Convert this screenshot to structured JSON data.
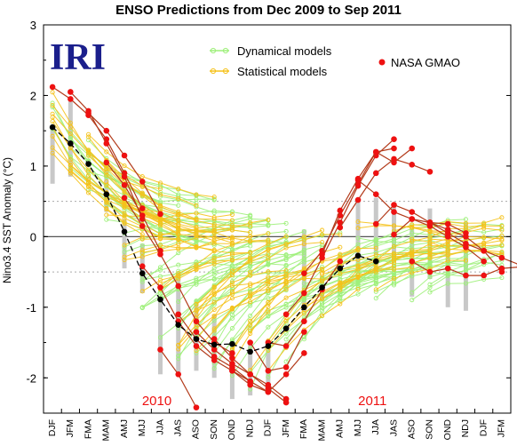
{
  "chart_data": {
    "type": "line",
    "title": "ENSO Predictions from Dec 2009 to Sep 2011",
    "ylabel": "Nino3.4 SST Anomaly (°C)",
    "xlabel": "",
    "ylim": [
      -2.5,
      3
    ],
    "yticks": [
      -2,
      -1,
      0,
      1,
      2,
      3
    ],
    "categories": [
      "DJF",
      "JFM",
      "FMA",
      "MAM",
      "AMJ",
      "MJJ",
      "JJA",
      "JAS",
      "ASO",
      "SON",
      "OND",
      "NDJ",
      "DJF",
      "JFM",
      "FMA",
      "MAM",
      "AMJ",
      "MJJ",
      "JJA",
      "JAS",
      "ASO",
      "SON",
      "OND",
      "NDJ",
      "DJF",
      "JFM"
    ],
    "year_labels": [
      {
        "text": "2010",
        "category_index": 6
      },
      {
        "text": "2011",
        "category_index": 18
      }
    ],
    "logo": "IRI",
    "reference_lines": [
      0.5,
      -0.5
    ],
    "grid": false,
    "legend_items": [
      {
        "label": "Dynamical models",
        "color": "#9ef07a"
      },
      {
        "label": "Statistical models",
        "color": "#f5c21b"
      },
      {
        "label": "NASA GMAO",
        "color": "#ee1111"
      }
    ],
    "colors": {
      "dynamical": "#9ef07a",
      "statistical": "#f5c21b",
      "nasa": "#ee1111",
      "nasa_line": "#b33b1b",
      "observed": "#000000",
      "observed_bar": "#c8c8c8",
      "zero_line": "#555555",
      "ref_line": "#aaaaaa"
    },
    "observed": {
      "name": "Observed",
      "x": [
        0,
        1,
        2,
        3,
        4,
        5,
        6,
        7,
        8,
        9,
        10,
        11,
        12,
        13,
        14,
        15,
        16,
        17,
        18
      ],
      "y": [
        1.55,
        1.32,
        1.03,
        0.6,
        0.07,
        -0.52,
        -0.89,
        -1.25,
        -1.45,
        -1.53,
        -1.52,
        -1.63,
        -1.55,
        -1.3,
        -1.0,
        -0.72,
        -0.45,
        -0.27,
        -0.35
      ]
    },
    "observed_ranges": [
      {
        "x": 0,
        "low": 0.75,
        "high": 1.55
      },
      {
        "x": 1,
        "low": 0.85,
        "high": 1.95
      },
      {
        "x": 3,
        "low": 0.35,
        "high": 0.95
      },
      {
        "x": 4,
        "low": -0.45,
        "high": 0.25
      },
      {
        "x": 5,
        "low": -0.8,
        "high": -0.1
      },
      {
        "x": 6,
        "low": -1.95,
        "high": -0.85
      },
      {
        "x": 7,
        "low": -1.95,
        "high": -0.5
      },
      {
        "x": 8,
        "low": -1.9,
        "high": -0.9
      },
      {
        "x": 9,
        "low": -2.0,
        "high": -1.1
      },
      {
        "x": 10,
        "low": -2.3,
        "high": -1.6
      },
      {
        "x": 11,
        "low": -2.25,
        "high": -1.5
      },
      {
        "x": 12,
        "low": -2.2,
        "high": -1.6
      },
      {
        "x": 14,
        "low": -1.05,
        "high": 0.1
      },
      {
        "x": 15,
        "low": -0.9,
        "high": -0.55
      },
      {
        "x": 17,
        "low": -0.5,
        "high": 0.5
      },
      {
        "x": 18,
        "low": -0.25,
        "high": 0.55
      },
      {
        "x": 19,
        "low": -0.3,
        "high": 0.45
      },
      {
        "x": 20,
        "low": -0.85,
        "high": 0.1
      },
      {
        "x": 21,
        "low": -0.6,
        "high": 0.4
      },
      {
        "x": 22,
        "low": -1.0,
        "high": 0.15
      },
      {
        "x": 23,
        "low": -1.05,
        "high": 0.2
      }
    ],
    "nasa_series": [
      {
        "x0": 0,
        "y": [
          2.12,
          1.95,
          1.72,
          1.38,
          0.9,
          0.4
        ]
      },
      {
        "x0": 1,
        "y": [
          2.05,
          1.78,
          1.32,
          0.85,
          0.25
        ]
      },
      {
        "x0": 2,
        "y": [
          1.75,
          1.5,
          1.15,
          0.78,
          0.32
        ]
      },
      {
        "x0": 3,
        "y": [
          1.05,
          0.73,
          0.3,
          -0.2
        ]
      },
      {
        "x0": 4,
        "y": [
          0.55,
          0.15,
          -0.25,
          -0.7,
          -1.2,
          -1.5,
          -1.65
        ]
      },
      {
        "x0": 5,
        "y": [
          -0.42,
          -0.72,
          -1.2,
          -1.55,
          -1.75,
          -1.9,
          -2.05
        ]
      },
      {
        "x0": 6,
        "y": [
          -1.6,
          -1.95,
          -2.42
        ]
      },
      {
        "x0": 7,
        "y": [
          -1.1,
          -1.45,
          -1.7,
          -1.85,
          -2.05,
          -2.2
        ]
      },
      {
        "x0": 8,
        "y": [
          -1.35,
          -1.6,
          -1.8,
          -1.95,
          -2.1,
          -2.3
        ]
      },
      {
        "x0": 9,
        "y": [
          -1.45,
          -1.72,
          -1.95,
          -2.15,
          -2.35
        ]
      },
      {
        "x0": 10,
        "y": [
          -1.9,
          -2.1,
          -2.2,
          -1.95,
          -1.65
        ]
      },
      {
        "x0": 11,
        "y": [
          -1.5,
          -1.9,
          -1.85,
          -1.35
        ]
      },
      {
        "x0": 12,
        "y": [
          -1.5,
          -1.55,
          -1.2,
          -0.75,
          -0.35
        ]
      },
      {
        "x0": 13,
        "y": [
          -1.1,
          -0.8,
          -0.3,
          0.2,
          0.72,
          1.15,
          1.38
        ]
      },
      {
        "x0": 14,
        "y": [
          -0.52,
          -0.2,
          0.3,
          0.75,
          1.2,
          1.05,
          1.25
        ]
      },
      {
        "x0": 15,
        "y": [
          -0.25,
          0.37,
          0.82,
          1.2,
          1.25
        ]
      },
      {
        "x0": 16,
        "y": [
          0.13,
          0.52,
          0.9,
          1.1,
          1.02,
          0.92
        ]
      },
      {
        "x0": 17,
        "y": [
          0.8,
          0.6,
          0.35,
          0.25,
          0.2,
          0.18,
          0.05
        ]
      },
      {
        "x0": 18,
        "y": [
          0.18,
          0.45,
          0.35,
          0.2,
          0.05,
          -0.1,
          -0.2,
          -0.5
        ]
      },
      {
        "x0": 19,
        "y": [
          0.03,
          0.25,
          0.15,
          0.0,
          -0.15,
          -0.35
        ]
      },
      {
        "x0": 20,
        "y": [
          -0.35,
          -0.5,
          -0.45,
          -0.55,
          -0.55,
          -0.45,
          -0.43
        ]
      },
      {
        "x0": 21,
        "y": [
          0.2,
          0.1,
          0.0,
          -0.2,
          -0.3,
          -0.4
        ]
      }
    ]
  }
}
